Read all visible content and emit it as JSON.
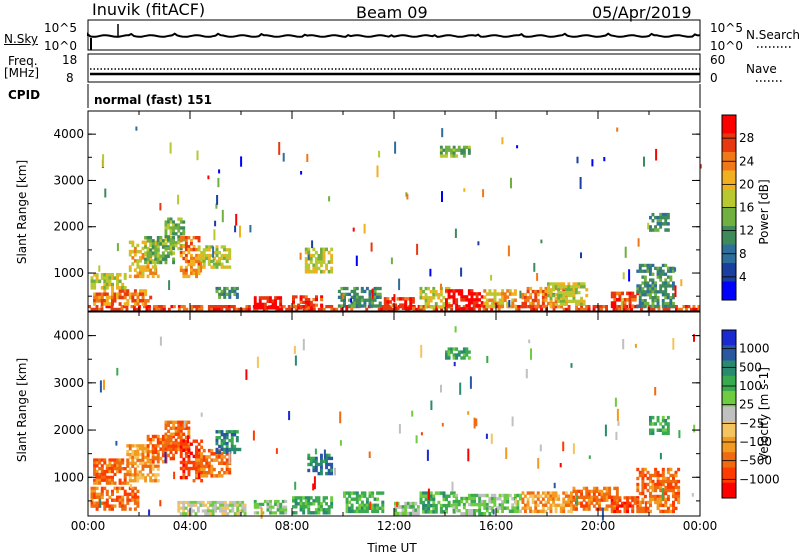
{
  "header": {
    "station": "Inuvik (fitACF)",
    "beam": "Beam 09",
    "date": "05/Apr/2019"
  },
  "nsky_panel": {
    "left_label": "N.Sky",
    "left_ticks": [
      "10^5",
      "10^0"
    ],
    "right_ticks": [
      "10^5",
      "10^0"
    ],
    "right_label": "N.Search",
    "right_legend_line": "dotted"
  },
  "freq_panel": {
    "left_label_1": "Freq.",
    "left_label_2": "[MHz]",
    "left_ticks": [
      "18",
      "8"
    ],
    "right_ticks": [
      "60",
      "0"
    ],
    "right_label": "Nave",
    "right_legend_line": "dotted"
  },
  "cpid": {
    "label": "CPID",
    "value": "normal (fast) 151"
  },
  "colors": {
    "power_scale": [
      "#0000ff",
      "#1a3f9e",
      "#2f6e9a",
      "#3f8a5a",
      "#6fb040",
      "#b8c830",
      "#f0b020",
      "#f07818",
      "#e83810",
      "#ff0000"
    ],
    "velocity_scale": [
      "#ff0000",
      "#ff3c00",
      "#f06a10",
      "#f39a20",
      "#f3c460",
      "#c0c0c0",
      "#6fcc40",
      "#3aaa50",
      "#2a8a70",
      "#2a58a0",
      "#1a2ad0"
    ]
  },
  "chart_data": [
    {
      "type": "heatmap",
      "name": "power",
      "ylabel": "Slant Range [km]",
      "yticks": [
        "1000",
        "2000",
        "3000",
        "4000"
      ],
      "ylim": [
        180,
        4500
      ],
      "xlim": [
        0,
        24
      ],
      "colorbar": {
        "label": "Power [dB]",
        "ticks": [
          "4",
          "8",
          "12",
          "16",
          "20",
          "24",
          "28"
        ],
        "range": [
          0,
          32
        ]
      },
      "note_patches": "approximate backscatter regions, [t0_hr, t1_hr, r0_km, r1_km, color_index]",
      "patches": [
        [
          0.0,
          24.0,
          190,
          310,
          8
        ],
        [
          0.2,
          2.6,
          300,
          650,
          7
        ],
        [
          0.1,
          1.5,
          650,
          1000,
          5
        ],
        [
          1.6,
          2.8,
          900,
          1700,
          6
        ],
        [
          2.2,
          3.4,
          1200,
          1800,
          4
        ],
        [
          3.0,
          3.8,
          1500,
          2200,
          4
        ],
        [
          3.6,
          4.4,
          900,
          1800,
          7
        ],
        [
          4.3,
          5.6,
          1100,
          1600,
          5
        ],
        [
          5.0,
          5.9,
          450,
          700,
          3
        ],
        [
          6.5,
          7.6,
          220,
          500,
          9
        ],
        [
          8.0,
          9.2,
          220,
          520,
          8
        ],
        [
          8.5,
          9.6,
          1000,
          1550,
          5
        ],
        [
          9.8,
          11.5,
          260,
          700,
          3
        ],
        [
          11.6,
          12.8,
          210,
          480,
          8
        ],
        [
          13.0,
          14.2,
          240,
          700,
          5
        ],
        [
          14.0,
          15.5,
          200,
          650,
          9
        ],
        [
          13.8,
          15.0,
          3500,
          3750,
          4
        ],
        [
          15.5,
          16.8,
          250,
          650,
          6
        ],
        [
          17.0,
          18.8,
          250,
          700,
          7
        ],
        [
          18.0,
          19.6,
          300,
          800,
          5
        ],
        [
          20.5,
          21.6,
          250,
          600,
          8
        ],
        [
          21.5,
          23.0,
          250,
          1200,
          3
        ],
        [
          22.0,
          22.8,
          1900,
          2300,
          3
        ]
      ]
    },
    {
      "type": "heatmap",
      "name": "velocity",
      "ylabel": "Slant Range [km]",
      "yticks": [
        "1000",
        "2000",
        "3000",
        "4000"
      ],
      "ylim": [
        180,
        4500
      ],
      "xlim": [
        0,
        24
      ],
      "xticks": [
        "00:00",
        "04:00",
        "08:00",
        "12:00",
        "16:00",
        "20:00",
        "00:00"
      ],
      "xlabel": "Time UT",
      "colorbar": {
        "label": "Velocity [m s-1]",
        "ticks": [
          "1000",
          "500",
          "100",
          "25",
          "−25",
          "−100",
          "−500",
          "−1000"
        ],
        "range": [
          -1000,
          1000
        ]
      },
      "note_patches": "approximate backscatter regions, [t0_hr, t1_hr, r0_km, r1_km, color_index]",
      "patches": [
        [
          0.1,
          2.0,
          300,
          800,
          2
        ],
        [
          0.2,
          1.6,
          850,
          1400,
          2
        ],
        [
          1.5,
          2.8,
          900,
          1700,
          3
        ],
        [
          2.3,
          3.4,
          1300,
          1900,
          2
        ],
        [
          3.0,
          4.0,
          1500,
          2200,
          2
        ],
        [
          3.6,
          4.5,
          900,
          1800,
          1
        ],
        [
          4.2,
          5.6,
          1000,
          1600,
          2
        ],
        [
          5.0,
          6.0,
          1500,
          2000,
          8
        ],
        [
          3.5,
          6.2,
          200,
          500,
          5
        ],
        [
          6.5,
          7.8,
          220,
          520,
          6
        ],
        [
          8.0,
          9.6,
          220,
          600,
          7
        ],
        [
          8.6,
          9.6,
          1050,
          1500,
          8
        ],
        [
          10.0,
          11.6,
          250,
          700,
          7
        ],
        [
          12.0,
          13.0,
          200,
          480,
          6
        ],
        [
          13.0,
          14.4,
          240,
          700,
          7
        ],
        [
          14.3,
          15.8,
          200,
          650,
          6
        ],
        [
          14.0,
          15.0,
          3500,
          3750,
          7
        ],
        [
          15.5,
          17.0,
          250,
          650,
          6
        ],
        [
          17.0,
          19.0,
          250,
          700,
          3
        ],
        [
          19.0,
          20.8,
          300,
          800,
          2
        ],
        [
          20.5,
          21.6,
          250,
          600,
          1
        ],
        [
          21.5,
          23.2,
          250,
          1200,
          2
        ],
        [
          22.0,
          22.8,
          1900,
          2300,
          7
        ]
      ]
    }
  ]
}
